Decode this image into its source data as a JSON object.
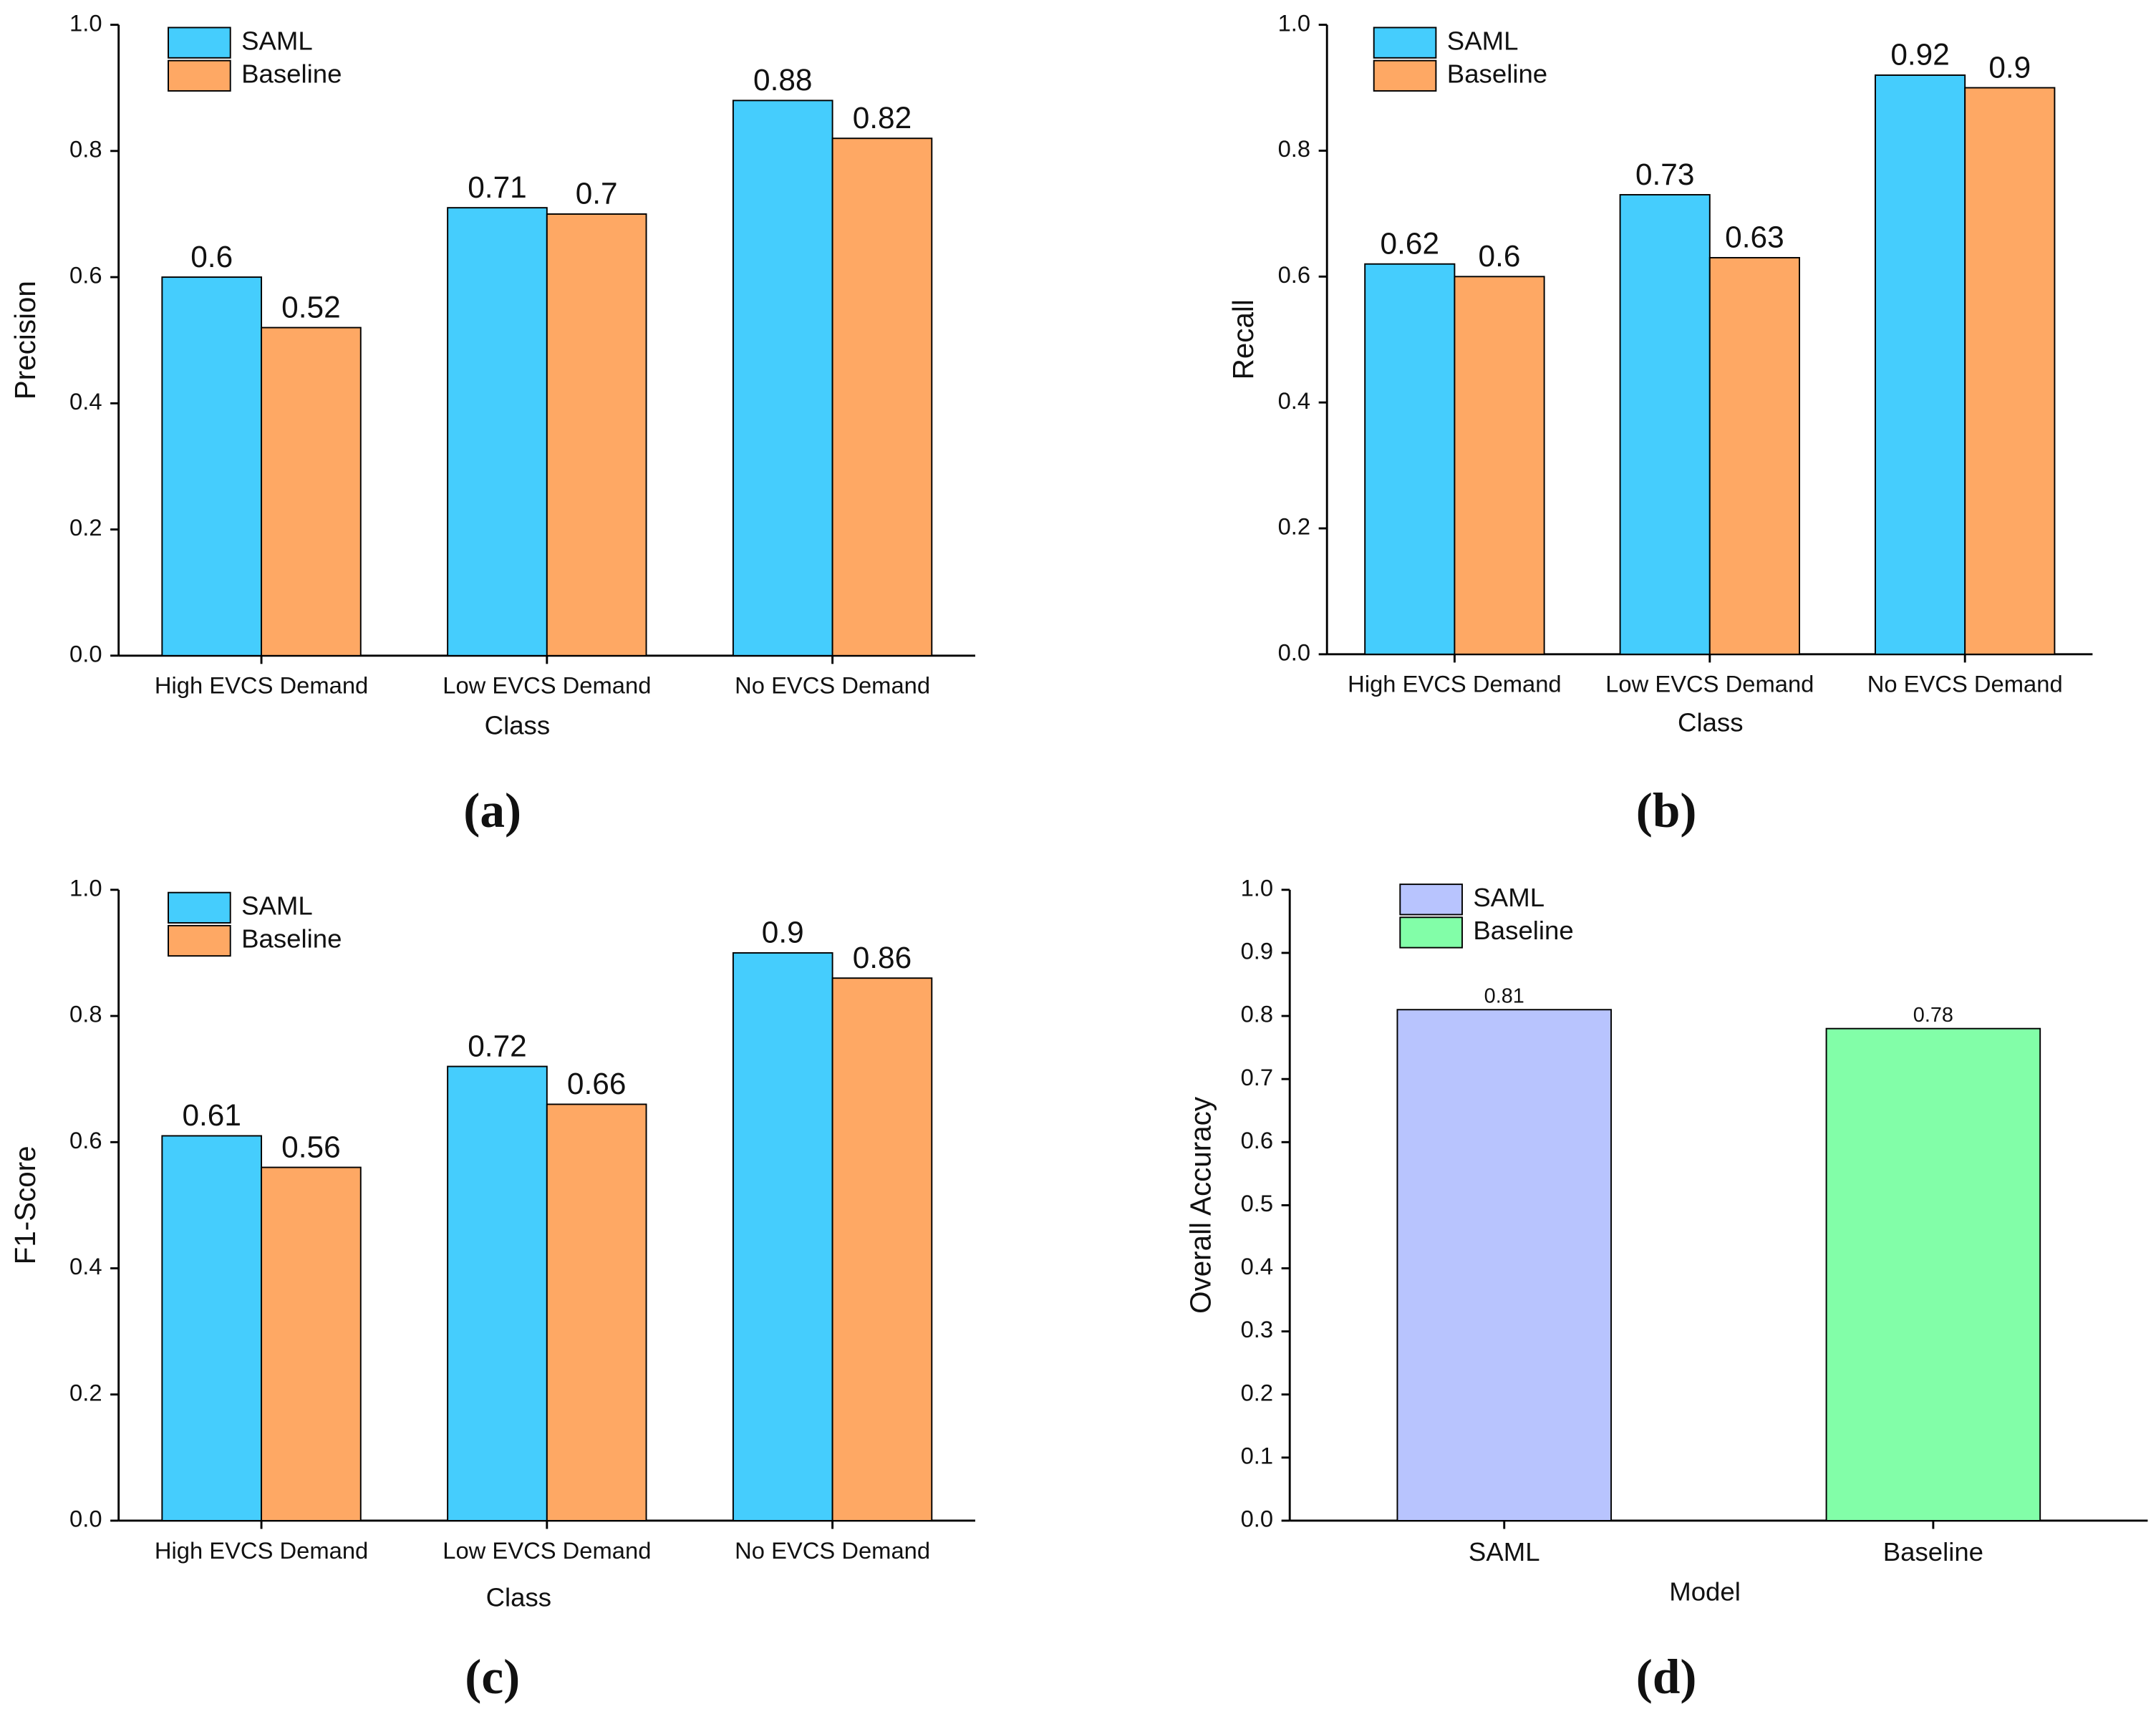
{
  "chart_data": [
    {
      "type": "bar",
      "panel": "(a)",
      "y_label": "Precision",
      "x_label": "Class",
      "categories": [
        "High EVCS Demand",
        "Low EVCS Demand",
        "No EVCS Demand"
      ],
      "series": [
        {
          "name": "SAML",
          "color": "#45cdfd",
          "values": [
            0.6,
            0.71,
            0.88
          ]
        },
        {
          "name": "Baseline",
          "color": "#fea864",
          "values": [
            0.52,
            0.7,
            0.82
          ]
        }
      ],
      "ylim": [
        0,
        1
      ],
      "yticks": [
        {
          "value": 0,
          "label": "0.0"
        },
        0.2,
        0.4,
        0.6,
        0.8,
        {
          "value": 1,
          "label": "1.0"
        }
      ],
      "legend": "upper left"
    },
    {
      "type": "bar",
      "panel": "(b)",
      "y_label": "Recall",
      "x_label": "Class",
      "categories": [
        "High EVCS Demand",
        "Low EVCS Demand",
        "No EVCS Demand"
      ],
      "series": [
        {
          "name": "SAML",
          "color": "#45cdfd",
          "values": [
            0.62,
            0.73,
            0.92
          ]
        },
        {
          "name": "Baseline",
          "color": "#fea864",
          "values": [
            0.6,
            0.63,
            0.9
          ]
        }
      ],
      "ylim": [
        0,
        1
      ],
      "yticks": [
        {
          "value": 0,
          "label": "0.0"
        },
        0.2,
        0.4,
        0.6,
        0.8,
        {
          "value": 1,
          "label": "1.0"
        }
      ],
      "legend": "upper left"
    },
    {
      "type": "bar",
      "panel": "(c)",
      "y_label": "F1-Score",
      "x_label": "Class",
      "categories": [
        "High EVCS Demand",
        "Low EVCS Demand",
        "No EVCS Demand"
      ],
      "series": [
        {
          "name": "SAML",
          "color": "#45cdfd",
          "values": [
            0.61,
            0.72,
            0.9
          ]
        },
        {
          "name": "Baseline",
          "color": "#fea864",
          "values": [
            0.56,
            0.66,
            0.86
          ]
        }
      ],
      "ylim": [
        0,
        1
      ],
      "yticks": [
        {
          "value": 0,
          "label": "0.0"
        },
        0.2,
        0.4,
        0.6,
        0.8,
        {
          "value": 1,
          "label": "1.0"
        }
      ],
      "legend": "upper left"
    },
    {
      "type": "bar",
      "panel": "(d)",
      "y_label": "Overall Accuracy",
      "x_label": "Model",
      "categories": [
        "SAML",
        "Baseline"
      ],
      "values": [
        0.81,
        0.78
      ],
      "colors": [
        "#b8c4fe",
        "#82fea8"
      ],
      "ylim": [
        0,
        1
      ],
      "yticks": [
        {
          "value": 0,
          "label": "0.0"
        },
        0.1,
        0.2,
        0.3,
        0.4,
        0.5,
        0.6,
        0.7,
        0.8,
        0.9,
        {
          "value": 1,
          "label": "1.0"
        }
      ],
      "legend": "upper left"
    }
  ]
}
